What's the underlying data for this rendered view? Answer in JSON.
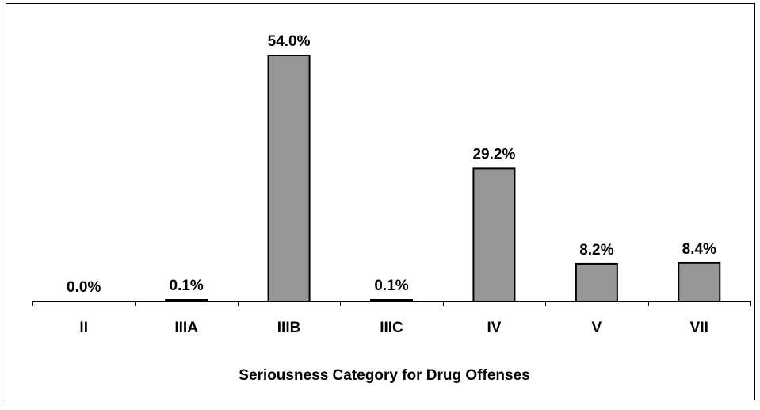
{
  "chart_data": {
    "type": "bar",
    "title": "",
    "xlabel": "Seriousness Category for Drug Offenses",
    "ylabel": "",
    "categories": [
      "II",
      "IIIA",
      "IIIB",
      "IIIC",
      "IV",
      "V",
      "VII"
    ],
    "values": [
      0.0,
      0.1,
      54.0,
      0.1,
      29.2,
      8.2,
      8.4
    ],
    "data_labels": [
      "0.0%",
      "0.1%",
      "54.0%",
      "0.1%",
      "29.2%",
      "8.2%",
      "8.4%"
    ],
    "ylim": [
      0,
      54
    ],
    "grid": false,
    "legend": "none",
    "colors": {
      "bar_fill": "#969696",
      "bar_stroke": "#000000",
      "frame": "#000000",
      "background": "#ffffff"
    }
  }
}
